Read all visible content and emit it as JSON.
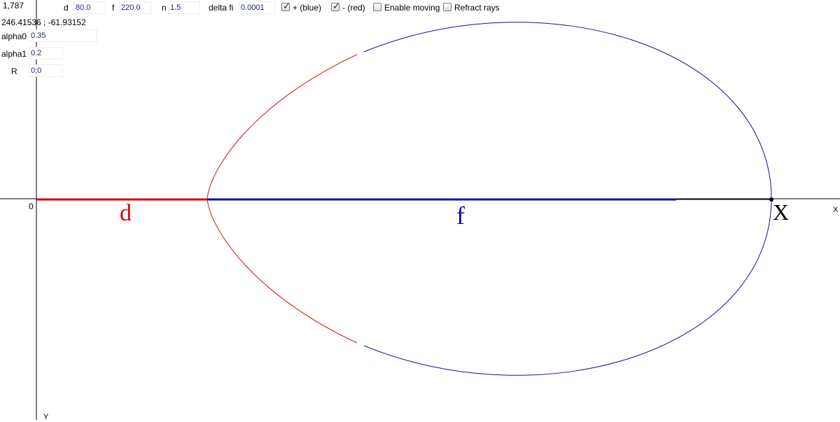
{
  "toolbar": {
    "d": {
      "label": "d",
      "value": "80.0"
    },
    "f": {
      "label": "f",
      "value": "220.0"
    },
    "n": {
      "label": "n",
      "value": "1.5"
    },
    "delta_fi": {
      "label": "delta fi",
      "value": "0.0001"
    },
    "plus_blue": {
      "label": "+ (blue)",
      "checked": true
    },
    "minus_red": {
      "label": "- (red)",
      "checked": true
    },
    "enable_moving": {
      "label": "Enable moving",
      "checked": false
    },
    "refract_rays": {
      "label": "Refract rays",
      "checked": false
    }
  },
  "side_panel": {
    "value_readout": "1,787",
    "coords_readout": "246.41536 ; -61.93152",
    "alpha0": {
      "label": "alpha0",
      "value": "0.35"
    },
    "alpha1": {
      "label": "alpha1",
      "value": "0.2"
    },
    "R": {
      "label": "R",
      "value": "0;0"
    }
  },
  "canvas": {
    "origin_label": "0",
    "x_axis_label": "X",
    "y_axis_label": "Y",
    "segment_d_label": "d",
    "segment_f_label": "f",
    "point_x_label": "X",
    "colors": {
      "axes": "#000000",
      "plus_curve": "#1010a0",
      "minus_curve": "#d01010",
      "d_segment": "#dd0000",
      "f_segment": "#1010a0"
    }
  }
}
